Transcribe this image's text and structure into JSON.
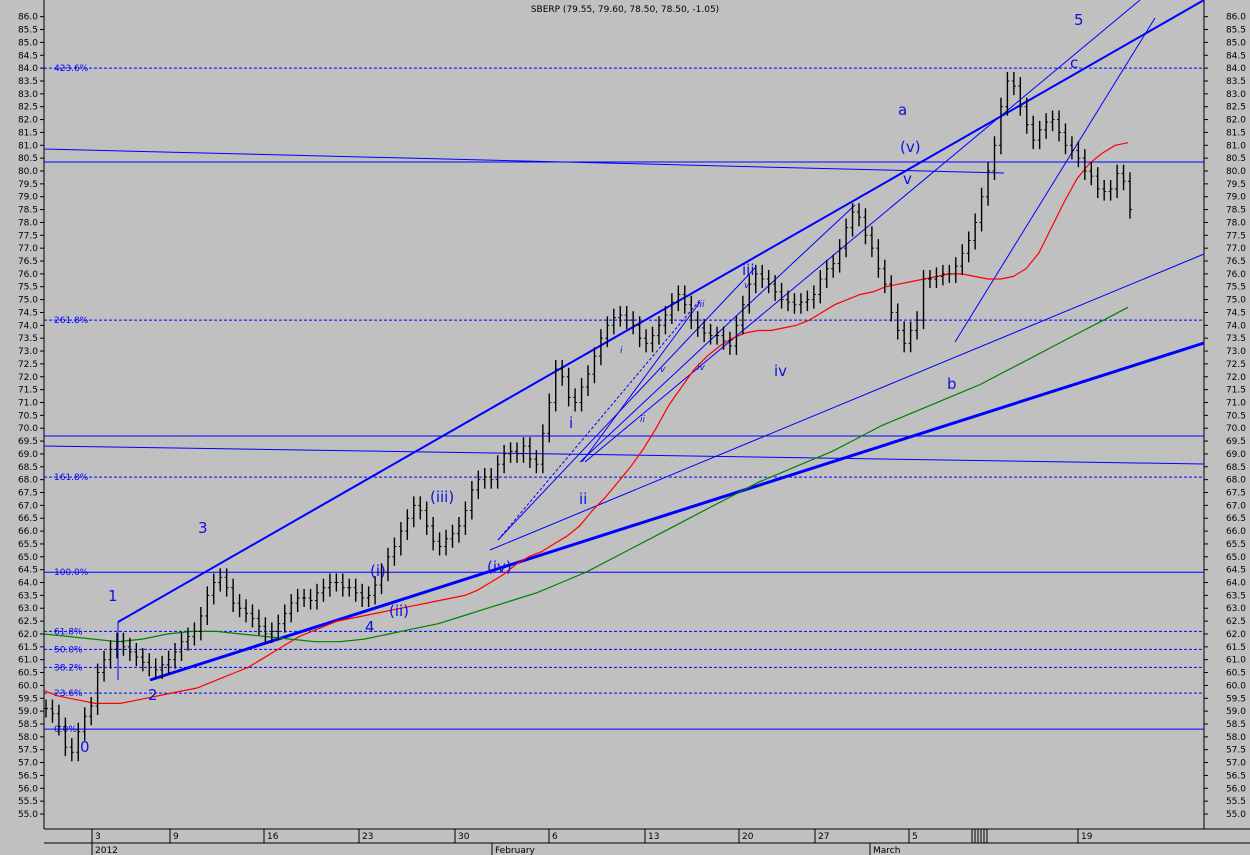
{
  "chart_data": {
    "type": "line",
    "title": "SBERP (79.55, 79.60, 78.50, 78.50, -1.05)",
    "ylim": [
      55,
      86
    ],
    "y_ticks": [
      "55.0",
      "55.5",
      "56.0",
      "56.5",
      "57.0",
      "57.5",
      "58.0",
      "58.5",
      "59.0",
      "59.5",
      "60.0",
      "60.5",
      "61.0",
      "61.5",
      "62.0",
      "62.5",
      "63.0",
      "63.5",
      "64.0",
      "64.5",
      "65.0",
      "65.5",
      "66.0",
      "66.5",
      "67.0",
      "67.5",
      "68.0",
      "68.5",
      "69.0",
      "69.5",
      "70.0",
      "70.5",
      "71.0",
      "71.5",
      "72.0",
      "72.5",
      "73.0",
      "73.5",
      "74.0",
      "74.5",
      "75.0",
      "75.5",
      "76.0",
      "76.5",
      "77.0",
      "77.5",
      "78.0",
      "78.5",
      "79.0",
      "79.5",
      "80.0",
      "80.5",
      "81.0",
      "81.5",
      "82.0",
      "82.5",
      "83.0",
      "83.5",
      "84.0",
      "84.5",
      "85.0",
      "85.5",
      "86.0"
    ],
    "x_ticks_day": [
      "3",
      "9",
      "16",
      "23",
      "30",
      "6",
      "13",
      "20",
      "27",
      "5",
      "19"
    ],
    "x_ticks_month": [
      "2012",
      "February",
      "March"
    ],
    "price_series": {
      "name": "SBERP",
      "values": [
        59.1,
        58.9,
        58.4,
        57.6,
        57.4,
        58.2,
        58.8,
        59.2,
        60.5,
        61.0,
        61.4,
        61.7,
        61.5,
        61.3,
        61.1,
        60.9,
        60.7,
        60.6,
        60.8,
        61.0,
        61.3,
        61.7,
        61.9,
        62.1,
        62.7,
        63.5,
        64.0,
        64.2,
        63.8,
        63.2,
        63.0,
        62.8,
        62.6,
        62.3,
        62.0,
        62.1,
        62.4,
        62.8,
        63.2,
        63.4,
        63.4,
        63.3,
        63.6,
        63.8,
        64.0,
        64.0,
        63.8,
        63.8,
        63.6,
        63.4,
        63.5,
        63.9,
        64.4,
        65.0,
        65.4,
        66.0,
        66.5,
        67.0,
        66.8,
        66.2,
        65.6,
        65.4,
        65.7,
        65.9,
        66.2,
        66.8,
        67.6,
        68.0,
        68.1,
        68.0,
        68.6,
        69.0,
        69.1,
        69.0,
        69.3,
        68.8,
        68.6,
        69.8,
        71.0,
        72.3,
        72.0,
        71.2,
        71.0,
        71.6,
        72.1,
        72.8,
        73.5,
        74.0,
        74.3,
        74.4,
        74.2,
        74.0,
        73.5,
        73.3,
        73.6,
        74.0,
        74.4,
        74.9,
        75.2,
        74.8,
        74.2,
        73.9,
        73.7,
        73.6,
        73.6,
        73.4,
        73.2,
        74.0,
        74.8,
        75.6,
        76.0,
        75.8,
        75.6,
        75.3,
        75.0,
        74.9,
        74.8,
        74.9,
        75.0,
        75.2,
        75.8,
        76.2,
        76.4,
        77.0,
        77.8,
        78.4,
        78.2,
        77.5,
        77.0,
        76.2,
        75.6,
        74.5,
        73.8,
        73.3,
        73.8,
        74.2,
        75.8,
        75.8,
        75.9,
        76.0,
        76.0,
        76.3,
        76.8,
        77.3,
        78.0,
        79.0,
        80.0,
        81.0,
        82.5,
        83.5,
        83.3,
        82.5,
        81.8,
        81.2,
        81.6,
        81.9,
        82.0,
        81.5,
        81.0,
        80.8,
        80.5,
        80.0,
        79.8,
        79.3,
        79.2,
        79.3,
        79.9,
        79.6,
        78.5
      ]
    },
    "ma_short": {
      "name": "MA red",
      "color": "#ff0000",
      "values": [
        59.8,
        59.6,
        59.5,
        59.4,
        59.3,
        59.3,
        59.3,
        59.4,
        59.5,
        59.6,
        59.7,
        59.8,
        59.9,
        60.1,
        60.3,
        60.5,
        60.7,
        61.0,
        61.3,
        61.6,
        61.9,
        62.1,
        62.3,
        62.5,
        62.6,
        62.7,
        62.8,
        62.9,
        63.0,
        63.1,
        63.2,
        63.3,
        63.4,
        63.5,
        63.7,
        64.0,
        64.3,
        64.7,
        65.0,
        65.2,
        65.5,
        65.8,
        66.2,
        66.8,
        67.3,
        67.9,
        68.5,
        69.2,
        70.0,
        70.9,
        71.6,
        72.3,
        72.8,
        73.2,
        73.5,
        73.7,
        73.8,
        73.8,
        73.9,
        74.0,
        74.2,
        74.5,
        74.8,
        75.0,
        75.2,
        75.3,
        75.5,
        75.6,
        75.7,
        75.8,
        75.9,
        76.0,
        76.0,
        75.9,
        75.8,
        75.8,
        75.9,
        76.2,
        76.8,
        77.8,
        78.8,
        79.7,
        80.3,
        80.7,
        81.0,
        81.1
      ]
    },
    "ma_long": {
      "name": "MA green",
      "color": "#008000",
      "values": [
        62.0,
        61.9,
        61.8,
        61.7,
        61.8,
        62.0,
        62.1,
        62.1,
        62.0,
        61.9,
        61.8,
        61.7,
        61.7,
        61.8,
        62.0,
        62.2,
        62.4,
        62.7,
        63.0,
        63.3,
        63.6,
        64.0,
        64.4,
        64.9,
        65.4,
        65.9,
        66.4,
        66.9,
        67.4,
        67.9,
        68.3,
        68.7,
        69.1,
        69.6,
        70.1,
        70.5,
        70.9,
        71.3,
        71.7,
        72.2,
        72.7,
        73.2,
        73.7,
        74.2,
        74.7
      ]
    },
    "fib_levels": [
      {
        "label": "423.6%",
        "value": 84.0
      },
      {
        "label": "261.8%",
        "value": 74.2
      },
      {
        "label": "161.8%",
        "value": 68.1
      },
      {
        "label": "100.0%",
        "value": 64.4
      },
      {
        "label": "61.8%",
        "value": 62.1
      },
      {
        "label": "50.0%",
        "value": 61.4
      },
      {
        "label": "38.2%",
        "value": 60.7
      },
      {
        "label": "23.6%",
        "value": 59.7
      },
      {
        "label": "0.0%",
        "value": 58.3
      }
    ],
    "wave_labels_large": [
      "0",
      "1",
      "2",
      "3",
      "4",
      "5",
      "a",
      "b",
      "c",
      "(v)",
      "v",
      "iii",
      "iv",
      "i",
      "ii",
      "(iii)",
      "(iv)",
      "(i)",
      "(ii)"
    ],
    "wave_labels_small": [
      "i",
      "ii",
      "iii",
      "iv",
      "v",
      "v"
    ],
    "grid": false,
    "legend": "none"
  }
}
